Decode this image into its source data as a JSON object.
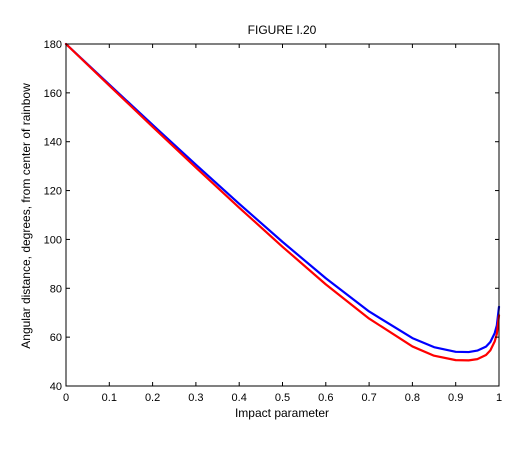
{
  "chart_data": {
    "type": "line",
    "title": "FIGURE I.20",
    "xlabel": "Impact parameter",
    "ylabel": "Angular distance, degrees, from center of rainbow",
    "xlim": [
      0,
      1
    ],
    "ylim": [
      40,
      180
    ],
    "grid": false,
    "xticks": [
      0,
      0.1,
      0.2,
      0.3,
      0.4,
      0.5,
      0.6,
      0.7,
      0.8,
      0.9,
      1
    ],
    "xtick_labels": [
      "0",
      "0.1",
      "0.2",
      "0.3",
      "0.4",
      "0.5",
      "0.6",
      "0.7",
      "0.8",
      "0.9",
      "1"
    ],
    "yticks": [
      40,
      60,
      80,
      100,
      120,
      140,
      160,
      180
    ],
    "ytick_labels": [
      "40",
      "60",
      "80",
      "100",
      "120",
      "140",
      "160",
      "180"
    ],
    "series": [
      {
        "color": "#0000ff",
        "x": [
          0,
          0.1,
          0.2,
          0.3,
          0.4,
          0.5,
          0.6,
          0.7,
          0.8,
          0.85,
          0.9,
          0.93,
          0.95,
          0.97,
          0.98,
          0.99,
          0.995,
          1.0
        ],
        "y": [
          180,
          163.4,
          146.9,
          130.6,
          114.6,
          99.0,
          84.1,
          70.5,
          59.6,
          55.9,
          54.0,
          53.9,
          54.5,
          56.1,
          58.0,
          61.6,
          64.8,
          72.4
        ]
      },
      {
        "color": "#ff0000",
        "x": [
          0,
          0.1,
          0.2,
          0.3,
          0.4,
          0.5,
          0.6,
          0.7,
          0.8,
          0.85,
          0.9,
          0.93,
          0.95,
          0.97,
          0.98,
          0.99,
          0.995,
          1.0
        ],
        "y": [
          180,
          163.0,
          146.1,
          129.4,
          113.0,
          97.0,
          81.6,
          67.6,
          56.2,
          52.4,
          50.6,
          50.5,
          51.0,
          52.7,
          54.6,
          58.2,
          61.3,
          68.9
        ]
      }
    ]
  }
}
